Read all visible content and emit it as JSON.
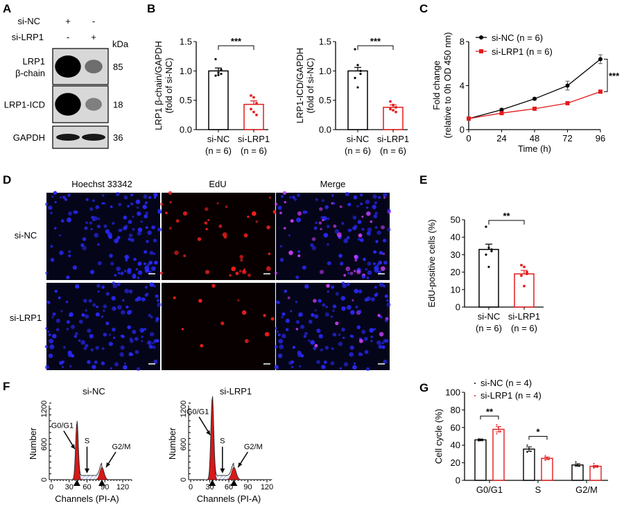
{
  "colors": {
    "control": "#000000",
    "knockdown": "#e31a1c",
    "hoechst": "#2a2aff",
    "edu": "#ff2020",
    "merge": "#d040ff"
  },
  "panels": {
    "A": {
      "label": "A",
      "conditions": [
        {
          "name": "si-NC",
          "lanes": [
            "+",
            "-"
          ]
        },
        {
          "name": "si-LRP1",
          "lanes": [
            "-",
            "+"
          ]
        }
      ],
      "unit": "kDa",
      "blots": [
        {
          "name": "LRP1",
          "name2": "β-chain",
          "kda": "85",
          "intensity": [
            1.0,
            0.3
          ]
        },
        {
          "name": "LRP1-ICD",
          "name2": "",
          "kda": "18",
          "intensity": [
            1.0,
            0.2
          ]
        },
        {
          "name": "GAPDH",
          "name2": "",
          "kda": "36",
          "intensity": [
            0.8,
            0.8
          ]
        }
      ]
    },
    "B": {
      "label": "B"
    },
    "C": {
      "label": "C"
    },
    "D": {
      "label": "D",
      "columns": [
        "Hoechst 33342",
        "EdU",
        "Merge"
      ],
      "rows": [
        "si-NC",
        "si-LRP1"
      ]
    },
    "E": {
      "label": "E"
    },
    "F": {
      "label": "F"
    },
    "G": {
      "label": "G"
    }
  },
  "chart_data": [
    {
      "id": "B1",
      "type": "bar",
      "ylabel": "LRP1 β-chain/GAPDH",
      "ylabel2": "(fold of si-NC)",
      "categories": [
        "si-NC",
        "si-LRP1"
      ],
      "category_n": [
        "(n = 6)",
        "(n = 6)"
      ],
      "values": [
        1.0,
        0.43
      ],
      "errors": [
        0.05,
        0.06
      ],
      "points": [
        [
          1.2,
          0.97,
          0.95,
          0.92,
          0.93,
          1.02
        ],
        [
          0.58,
          0.55,
          0.45,
          0.35,
          0.3,
          0.25
        ]
      ],
      "ylim": [
        0,
        1.5
      ],
      "yticks": [
        "0.0",
        "0.5",
        "1.0",
        "1.5"
      ],
      "significance": "***"
    },
    {
      "id": "B2",
      "type": "bar",
      "ylabel": "LRP1-ICD/GAPDH",
      "ylabel2": "(fold of si-NC)",
      "categories": [
        "si-NC",
        "si-LRP1"
      ],
      "category_n": [
        "(n = 6)",
        "(n = 6)"
      ],
      "values": [
        1.0,
        0.38
      ],
      "errors": [
        0.06,
        0.04
      ],
      "points": [
        [
          1.37,
          1.1,
          0.95,
          0.88,
          0.72,
          1.0
        ],
        [
          0.48,
          0.42,
          0.38,
          0.35,
          0.33,
          0.3
        ]
      ],
      "ylim": [
        0,
        1.5
      ],
      "yticks": [
        "0.0",
        "0.5",
        "1.0",
        "1.5"
      ],
      "significance": "***"
    },
    {
      "id": "C",
      "type": "line",
      "xlabel": "Time (h)",
      "ylabel": "Fold change",
      "ylabel2": "(relative to 0h OD 450 nm)",
      "x": [
        0,
        24,
        48,
        72,
        96
      ],
      "xlim": [
        0,
        96
      ],
      "xticks": [
        "0",
        "24",
        "48",
        "72",
        "96"
      ],
      "ylim": [
        0,
        8
      ],
      "yticks": [
        "0",
        "4",
        "8"
      ],
      "series": [
        {
          "name": "si-NC (n = 6)",
          "values": [
            1.0,
            1.8,
            2.8,
            4.0,
            6.4
          ],
          "errors": [
            0.05,
            0.1,
            0.1,
            0.4,
            0.4
          ],
          "marker": "circle"
        },
        {
          "name": "si-LRP1 (n = 6)",
          "values": [
            1.0,
            1.5,
            1.9,
            2.4,
            3.45
          ],
          "errors": [
            0.05,
            0.08,
            0.08,
            0.1,
            0.1
          ],
          "marker": "square"
        }
      ],
      "legend": "top-left",
      "significance": "***"
    },
    {
      "id": "E",
      "type": "bar",
      "ylabel": "EdU-positive cells (%)",
      "categories": [
        "si-NC",
        "si-LRP1"
      ],
      "category_n": [
        "(n = 6)",
        "(n = 6)"
      ],
      "values": [
        33,
        19
      ],
      "errors": [
        3,
        2
      ],
      "points": [
        [
          46,
          34,
          32,
          30,
          23,
          33
        ],
        [
          24,
          23,
          20,
          18,
          12,
          19
        ]
      ],
      "ylim": [
        0,
        50
      ],
      "yticks": [
        "0",
        "10",
        "20",
        "30",
        "40",
        "50"
      ],
      "significance": "**"
    },
    {
      "id": "F1",
      "type": "area",
      "title": "si-NC",
      "xlabel": "Channels (PI-A)",
      "ylabel": "Number",
      "xlim": [
        0,
        135
      ],
      "xticks": [
        "0",
        "30",
        "60",
        "90",
        "120"
      ],
      "ylim": [
        0,
        1400
      ],
      "yticks": [
        "0",
        "600",
        "1200"
      ],
      "peaks": [
        {
          "label": "G0/G1",
          "channel": 43,
          "height": 950
        },
        {
          "label": "G2/M",
          "channel": 85,
          "height": 210
        }
      ],
      "s_label": "S",
      "s_channel": 60
    },
    {
      "id": "F2",
      "type": "area",
      "title": "si-LRP1",
      "xlabel": "Channels (PI-A)",
      "ylabel": "Number",
      "xlim": [
        0,
        128
      ],
      "xticks": [
        "0",
        "30",
        "60",
        "90",
        "120"
      ],
      "ylim": [
        0,
        1400
      ],
      "yticks": [
        "0",
        "600",
        "1200"
      ],
      "peaks": [
        {
          "label": "G0/G1",
          "channel": 34,
          "height": 1380
        },
        {
          "label": "G2/M",
          "channel": 68,
          "height": 210
        }
      ],
      "s_label": "S",
      "s_channel": 50
    },
    {
      "id": "G",
      "type": "bar",
      "ylabel": "Cell cycle (%)",
      "categories": [
        "G0/G1",
        "S",
        "G2/M"
      ],
      "series": [
        {
          "name": "si-NC (n = 4)",
          "values": [
            46,
            35.5,
            17.5
          ],
          "errors": [
            1,
            2.5,
            1.5
          ],
          "points": [
            [
              47,
              45.5,
              46,
              45
            ],
            [
              40,
              36,
              33,
              32
            ],
            [
              21,
              17,
              16,
              17
            ]
          ]
        },
        {
          "name": "si-LRP1 (n = 4)",
          "values": [
            58,
            25,
            16
          ],
          "errors": [
            3,
            1.5,
            1
          ],
          "points": [
            [
              63,
              60,
              56,
              53
            ],
            [
              28,
              26,
              24,
              23
            ],
            [
              19,
              16,
              15,
              14
            ]
          ]
        }
      ],
      "ylim": [
        0,
        100
      ],
      "yticks": [
        "0",
        "20",
        "40",
        "60",
        "80",
        "100"
      ],
      "significance": [
        "**",
        "*",
        ""
      ],
      "legend": "top-left"
    }
  ]
}
